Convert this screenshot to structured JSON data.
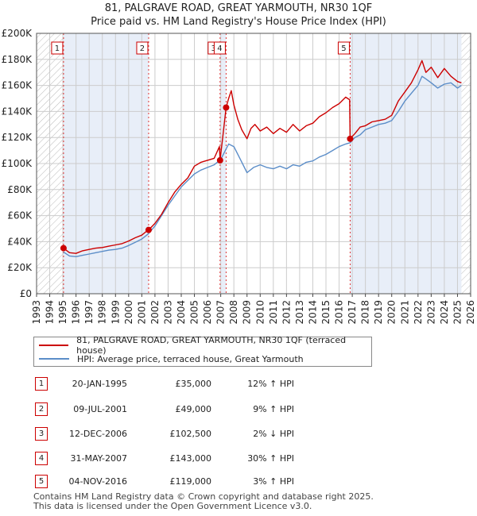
{
  "chart_data": {
    "type": "line",
    "title": "81, PALGRAVE ROAD, GREAT YARMOUTH, NR30 1QF",
    "subtitle": "Price paid vs. HM Land Registry's House Price Index (HPI)",
    "xlabel": "",
    "ylabel": "",
    "xlim": [
      1993,
      2026
    ],
    "ylim": [
      0,
      200000
    ],
    "x_ticks": [
      "1993",
      "1994",
      "1995",
      "1996",
      "1997",
      "1998",
      "1999",
      "2000",
      "2001",
      "2002",
      "2003",
      "2004",
      "2005",
      "2006",
      "2007",
      "2008",
      "2009",
      "2010",
      "2011",
      "2012",
      "2013",
      "2014",
      "2015",
      "2016",
      "2017",
      "2018",
      "2019",
      "2020",
      "2021",
      "2022",
      "2023",
      "2024",
      "2025",
      "2026"
    ],
    "y_ticks": [
      {
        "value": 0,
        "label": "£0"
      },
      {
        "value": 20000,
        "label": "£20K"
      },
      {
        "value": 40000,
        "label": "£40K"
      },
      {
        "value": 60000,
        "label": "£60K"
      },
      {
        "value": 80000,
        "label": "£80K"
      },
      {
        "value": 100000,
        "label": "£100K"
      },
      {
        "value": 120000,
        "label": "£120K"
      },
      {
        "value": 140000,
        "label": "£140K"
      },
      {
        "value": 160000,
        "label": "£160K"
      },
      {
        "value": 180000,
        "label": "£180K"
      },
      {
        "value": 200000,
        "label": "£200K"
      }
    ],
    "grid": true,
    "hatched_ranges": [
      [
        1993,
        1995.05
      ],
      [
        2025.3,
        2026
      ]
    ],
    "shaded_ranges": [
      [
        1995.05,
        2001.52
      ],
      [
        2006.95,
        2007.41
      ],
      [
        2016.84,
        2025.3
      ]
    ],
    "series": [
      {
        "name": "81, PALGRAVE ROAD, GREAT YARMOUTH, NR30 1QF (terraced house)",
        "color": "#cc0000",
        "x": [
          1995.05,
          1995.5,
          1996,
          1996.5,
          1997,
          1997.5,
          1998,
          1998.5,
          1999,
          1999.5,
          2000,
          2000.5,
          2001,
          2001.3,
          2001.52,
          2001.52,
          2002,
          2002.5,
          2003,
          2003.5,
          2004,
          2004.5,
          2005,
          2005.5,
          2006,
          2006.5,
          2006.9,
          2006.95,
          2006.95,
          2007.2,
          2007.41,
          2007.41,
          2007.6,
          2007.8,
          2008,
          2008.3,
          2008.6,
          2009,
          2009.3,
          2009.6,
          2010,
          2010.5,
          2011,
          2011.5,
          2012,
          2012.5,
          2013,
          2013.5,
          2014,
          2014.5,
          2015,
          2015.5,
          2016,
          2016.5,
          2016.8,
          2016.84,
          2016.84,
          2017.2,
          2017.6,
          2018,
          2018.5,
          2019,
          2019.5,
          2020,
          2020.5,
          2021,
          2021.5,
          2022,
          2022.3,
          2022.6,
          2023,
          2023.5,
          2024,
          2024.5,
          2025,
          2025.3
        ],
        "y": [
          35000,
          31500,
          31000,
          33000,
          34000,
          35000,
          35500,
          36500,
          37500,
          38500,
          40500,
          43000,
          45000,
          47500,
          49000,
          49000,
          54000,
          61000,
          70000,
          78000,
          84000,
          89000,
          98000,
          101000,
          102500,
          104000,
          113000,
          102500,
          102500,
          124000,
          143000,
          143000,
          150000,
          156000,
          145000,
          134000,
          126000,
          119000,
          127000,
          130000,
          125000,
          128000,
          123000,
          127000,
          124000,
          130000,
          125000,
          129000,
          131000,
          136000,
          139000,
          143000,
          146000,
          151000,
          149000,
          119000,
          119000,
          123000,
          128000,
          129000,
          132000,
          133000,
          134000,
          137000,
          148000,
          155000,
          162000,
          172000,
          179000,
          170000,
          174000,
          166000,
          173000,
          167000,
          163000,
          162000
        ]
      },
      {
        "name": "HPI: Average price, terraced house, Great Yarmouth",
        "color": "#5b8dc8",
        "x": [
          1995.05,
          1995.5,
          1996,
          1996.5,
          1997,
          1997.5,
          1998,
          1998.5,
          1999,
          1999.5,
          2000,
          2000.5,
          2001,
          2001.5,
          2002,
          2002.5,
          2003,
          2003.5,
          2004,
          2004.5,
          2005,
          2005.5,
          2006,
          2006.5,
          2007,
          2007.3,
          2007.6,
          2008,
          2008.5,
          2009,
          2009.5,
          2010,
          2010.5,
          2011,
          2011.5,
          2012,
          2012.5,
          2013,
          2013.5,
          2014,
          2014.5,
          2015,
          2015.5,
          2016,
          2016.5,
          2016.84,
          2017.2,
          2017.6,
          2018,
          2018.5,
          2019,
          2019.5,
          2020,
          2020.5,
          2021,
          2021.5,
          2022,
          2022.3,
          2022.6,
          2023,
          2023.5,
          2024,
          2024.5,
          2025,
          2025.3
        ],
        "y": [
          32000,
          29000,
          28500,
          29500,
          30500,
          31500,
          32500,
          33500,
          34000,
          35000,
          37000,
          39500,
          42000,
          46000,
          52000,
          60000,
          68000,
          75000,
          82000,
          87000,
          92000,
          95000,
          97000,
          99000,
          103000,
          109000,
          115000,
          113000,
          103000,
          93000,
          97000,
          99000,
          97000,
          96000,
          98000,
          96000,
          99000,
          98000,
          101000,
          102000,
          105000,
          107000,
          110000,
          113000,
          115000,
          116000,
          120000,
          122000,
          126000,
          128000,
          130000,
          131000,
          133000,
          140000,
          148000,
          154000,
          160000,
          167000,
          165000,
          162000,
          158000,
          161000,
          162000,
          158000,
          160000
        ]
      }
    ],
    "sales": [
      {
        "label": "1",
        "x": 1995.05,
        "price": 35000
      },
      {
        "label": "2",
        "x": 2001.52,
        "price": 49000
      },
      {
        "label": "3",
        "x": 2006.95,
        "price": 102500
      },
      {
        "label": "4",
        "x": 2007.41,
        "price": 143000
      },
      {
        "label": "5",
        "x": 2016.84,
        "price": 119000
      }
    ]
  },
  "legend": {
    "property_label": "81, PALGRAVE ROAD, GREAT YARMOUTH, NR30 1QF (terraced house)",
    "hpi_label": "HPI: Average price, terraced house, Great Yarmouth"
  },
  "sales_table": [
    {
      "num": "1",
      "date": "20-JAN-1995",
      "price": "£35,000",
      "hpi": "12% ↑ HPI"
    },
    {
      "num": "2",
      "date": "09-JUL-2001",
      "price": "£49,000",
      "hpi": "9% ↑ HPI"
    },
    {
      "num": "3",
      "date": "12-DEC-2006",
      "price": "£102,500",
      "hpi": "2% ↓ HPI"
    },
    {
      "num": "4",
      "date": "31-MAY-2007",
      "price": "£143,000",
      "hpi": "30% ↑ HPI"
    },
    {
      "num": "5",
      "date": "04-NOV-2016",
      "price": "£119,000",
      "hpi": "3% ↑ HPI"
    }
  ],
  "footer": {
    "line1": "Contains HM Land Registry data © Crown copyright and database right 2025.",
    "line2": "This data is licensed under the Open Government Licence v3.0."
  },
  "colors": {
    "property": "#cc0000",
    "hpi": "#5b8dc8",
    "shade": "#e8eef8",
    "grid": "#cccccc"
  }
}
